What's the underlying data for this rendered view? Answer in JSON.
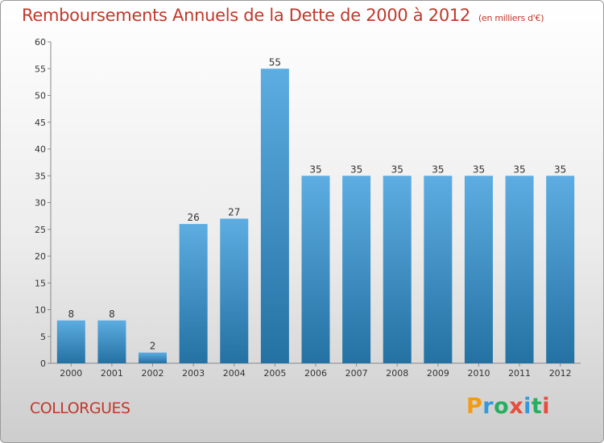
{
  "header": {
    "title": "Remboursements Annuels de la Dette de 2000 à 2012",
    "subtitle": "(en milliers d'€)"
  },
  "footer": {
    "town": "COLLORGUES",
    "logo_letters": [
      "P",
      "r",
      "o",
      "x",
      "i",
      "t",
      "i"
    ]
  },
  "colors": {
    "title": "#c0392b",
    "bar_top": "#5dade2",
    "bar_bottom": "#2471a3"
  },
  "chart_data": {
    "type": "bar",
    "title": "Remboursements Annuels de la Dette de 2000 à 2012",
    "subtitle": "(en milliers d'€)",
    "xlabel": "",
    "ylabel": "",
    "categories": [
      "2000",
      "2001",
      "2002",
      "2003",
      "2004",
      "2005",
      "2006",
      "2007",
      "2008",
      "2009",
      "2010",
      "2011",
      "2012"
    ],
    "values": [
      8,
      8,
      2,
      26,
      27,
      55,
      35,
      35,
      35,
      35,
      35,
      35,
      35
    ],
    "ylim": [
      0,
      60
    ],
    "yticks": [
      0,
      5,
      10,
      15,
      20,
      25,
      30,
      35,
      40,
      45,
      50,
      55,
      60
    ],
    "grid": false,
    "data_labels": true
  }
}
